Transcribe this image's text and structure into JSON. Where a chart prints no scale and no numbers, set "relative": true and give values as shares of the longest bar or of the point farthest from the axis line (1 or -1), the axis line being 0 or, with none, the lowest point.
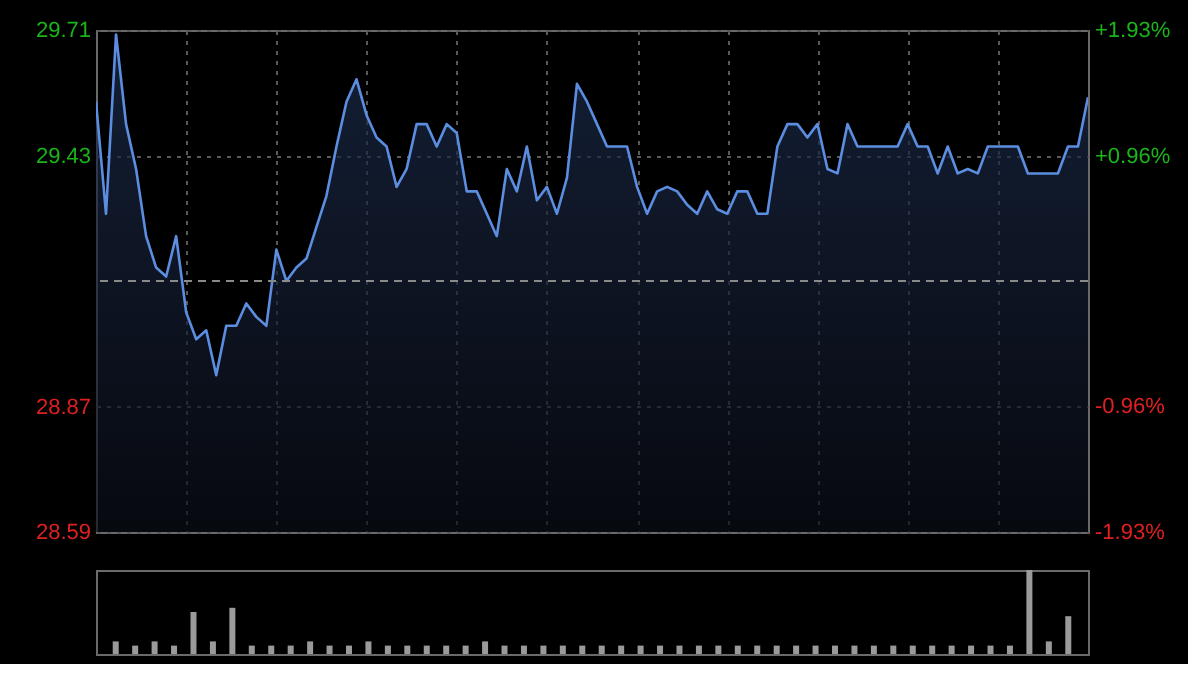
{
  "chart_data": [
    {
      "type": "area",
      "categories": [
        null,
        null,
        null,
        null,
        null,
        null,
        null,
        null,
        null,
        null,
        null,
        null,
        null,
        null,
        null,
        null,
        null,
        null,
        null,
        null,
        null,
        null,
        null,
        null,
        null,
        null,
        null,
        null,
        null,
        null,
        null,
        null,
        null,
        null,
        null,
        null,
        null,
        null,
        null,
        null,
        null,
        null,
        null,
        null,
        null,
        null,
        null,
        null,
        null,
        null,
        null,
        null,
        null,
        null,
        null,
        null,
        null,
        null,
        null,
        null,
        null,
        null,
        null,
        null,
        null,
        null,
        null,
        null,
        null,
        null,
        null,
        null,
        null,
        null,
        null,
        null,
        null,
        null,
        null,
        null,
        null,
        null,
        null,
        null,
        null,
        null,
        null,
        null,
        null,
        null,
        null,
        null,
        null,
        null,
        null,
        null,
        null,
        null,
        null,
        null
      ],
      "series": [
        {
          "color": "#5b8ee0",
          "values": [
            29.55,
            29.3,
            29.7,
            29.5,
            29.4,
            29.25,
            29.18,
            29.16,
            29.25,
            29.08,
            29.02,
            29.04,
            28.94,
            29.05,
            29.05,
            29.1,
            29.07,
            29.05,
            29.22,
            29.15,
            29.18,
            29.2,
            29.27,
            29.34,
            29.45,
            29.55,
            29.6,
            29.52,
            29.47,
            29.45,
            29.36,
            29.4,
            29.5,
            29.5,
            29.45,
            29.5,
            29.48,
            29.35,
            29.35,
            29.3,
            29.25,
            29.4,
            29.35,
            29.45,
            29.33,
            29.36,
            29.3,
            29.38,
            29.59,
            29.55,
            29.5,
            29.45,
            29.45,
            29.45,
            29.36,
            29.3,
            29.35,
            29.36,
            29.35,
            29.32,
            29.3,
            29.35,
            29.31,
            29.3,
            29.35,
            29.35,
            29.3,
            29.3,
            29.45,
            29.5,
            29.5,
            29.47,
            29.5,
            29.4,
            29.39,
            29.5,
            29.45,
            29.45,
            29.45,
            29.45,
            29.45,
            29.5,
            29.45,
            29.45,
            29.39,
            29.45,
            29.39,
            29.4,
            29.39,
            29.45,
            29.45,
            29.45,
            29.45,
            29.39,
            29.39,
            29.39,
            29.39,
            29.45,
            29.45,
            29.56
          ]
        }
      ],
      "ylim": [
        28.59,
        29.71
      ],
      "yticks": [
        28.59,
        28.87,
        29.43,
        29.71
      ],
      "y2lim": [
        -1.93,
        1.93
      ],
      "y2ticks": [
        {
          "value": -1.93,
          "label": "-1.93%"
        },
        {
          "value": -0.96,
          "label": "-0.96%"
        },
        {
          "value": 0.96,
          "label": "+0.96%"
        },
        {
          "value": 1.93,
          "label": "+1.93%"
        }
      ],
      "ref_lines": [
        {
          "axis": "y",
          "value": 29.15,
          "line_style": "dashed"
        }
      ],
      "grid": true
    },
    {
      "type": "bar",
      "relative": true,
      "categories": [
        null,
        null,
        null,
        null,
        null,
        null,
        null,
        null,
        null,
        null,
        null,
        null,
        null,
        null,
        null,
        null,
        null,
        null,
        null,
        null,
        null,
        null,
        null,
        null,
        null,
        null,
        null,
        null,
        null,
        null,
        null,
        null,
        null,
        null,
        null,
        null,
        null,
        null,
        null,
        null,
        null,
        null,
        null,
        null,
        null,
        null,
        null,
        null,
        null,
        null
      ],
      "series": [
        {
          "color": "#9a9a9a",
          "values": [
            0.15,
            0.1,
            0.15,
            0.1,
            0.5,
            0.15,
            0.55,
            0.1,
            0.1,
            0.1,
            0.15,
            0.1,
            0.1,
            0.15,
            0.1,
            0.1,
            0.1,
            0.1,
            0.1,
            0.15,
            0.1,
            0.1,
            0.1,
            0.1,
            0.1,
            0.1,
            0.1,
            0.1,
            0.1,
            0.1,
            0.1,
            0.1,
            0.1,
            0.1,
            0.1,
            0.1,
            0.1,
            0.1,
            0.1,
            0.1,
            0.1,
            0.1,
            0.1,
            0.1,
            0.1,
            0.1,
            0.1,
            1.0,
            0.15,
            0.45
          ]
        }
      ],
      "grid": false
    }
  ]
}
